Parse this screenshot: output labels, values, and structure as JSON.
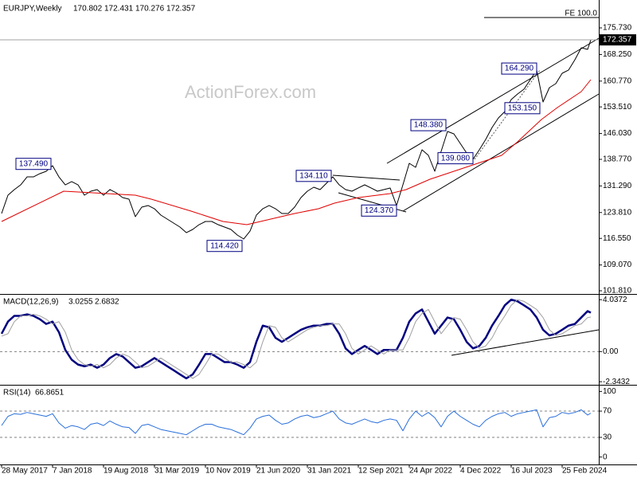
{
  "chart_data": [
    {
      "type": "line",
      "title": "EURJPY,Weekly",
      "last_bar": {
        "open": 170.802,
        "high": 172.431,
        "low": 170.276
      },
      "watermark": "ActionForex.com",
      "xlim": [
        -1,
        375
      ],
      "ylim": [
        101.14,
        183.12
      ],
      "yticks": [
        {
          "value": 175.73,
          "label": "175.730"
        },
        {
          "value": 168.25,
          "label": "168.250"
        },
        {
          "value": 160.77,
          "label": "160.770"
        },
        {
          "value": 153.51,
          "label": "153.510"
        },
        {
          "value": 146.03,
          "label": "146.030"
        },
        {
          "value": 138.77,
          "label": "138.770"
        },
        {
          "value": 131.29,
          "label": "131.290"
        },
        {
          "value": 123.81,
          "label": "123.810"
        },
        {
          "value": 116.55,
          "label": "116.550"
        },
        {
          "value": 109.07,
          "label": "109.070"
        },
        {
          "value": 101.81,
          "label": "101.810"
        }
      ],
      "series": [
        {
          "color": "#000000",
          "width": 1,
          "x": [
            0,
            4,
            8,
            12,
            16,
            20,
            24,
            28,
            32,
            36,
            40,
            44,
            48,
            52,
            56,
            60,
            64,
            68,
            72,
            76,
            80,
            84,
            88,
            92,
            96,
            100,
            104,
            108,
            112,
            116,
            120,
            124,
            128,
            132,
            136,
            140,
            144,
            148,
            152,
            156,
            160,
            164,
            168,
            172,
            176,
            180,
            184,
            188,
            192,
            196,
            200,
            204,
            208,
            212,
            216,
            220,
            224,
            228,
            232,
            236,
            240,
            244,
            248,
            252,
            256,
            260,
            264,
            268,
            272,
            276,
            280,
            284,
            288,
            292,
            296,
            300,
            304,
            308,
            312,
            316,
            320,
            324,
            328,
            332,
            336,
            340,
            344,
            348,
            352,
            356,
            360,
            364,
            368,
            370
          ],
          "values": [
            123.54,
            128.69,
            130.26,
            131.6,
            133.84,
            133.84,
            134.74,
            135.41,
            136.98,
            133.84,
            131.6,
            132.5,
            131.6,
            128.69,
            129.81,
            130.26,
            128.69,
            130.26,
            129.36,
            128.02,
            127.57,
            122.64,
            125.33,
            125.78,
            124.88,
            123.09,
            121.97,
            120.85,
            119.73,
            118.16,
            119.06,
            120.4,
            121.3,
            121.3,
            120.4,
            119.73,
            119.06,
            117.49,
            116.37,
            118.61,
            123.09,
            124.88,
            125.78,
            124.88,
            123.54,
            123.54,
            125.33,
            128.02,
            129.81,
            130.93,
            130.26,
            132.05,
            133.84,
            131.6,
            130.26,
            129.81,
            130.71,
            131.6,
            130.71,
            129.81,
            130.26,
            130.71,
            125.78,
            131.6,
            137.65,
            136.53,
            141.46,
            139.89,
            135.41,
            141.01,
            146.61,
            145.94,
            143.25,
            140.56,
            138.77,
            141.46,
            144.37,
            147.73,
            150.42,
            152.21,
            155.57,
            157.14,
            158.48,
            161.17,
            163.86,
            154.9,
            158.93,
            160.05,
            162.96,
            163.86,
            166.77,
            170.13,
            169.68,
            172.357
          ]
        },
        {
          "color": "#e00000",
          "width": 1,
          "x": [
            0,
            39,
            84,
            94,
            119,
            139,
            154,
            169,
            184,
            199,
            209,
            224,
            244,
            254,
            269,
            284,
            299,
            314,
            324,
            339,
            349,
            364,
            370
          ],
          "values": [
            121.3,
            129.81,
            128.69,
            127.57,
            124.21,
            121.3,
            120.4,
            121.97,
            123.54,
            124.88,
            126.45,
            128.02,
            129.14,
            130.26,
            133.17,
            135.41,
            137.65,
            139.89,
            143.7,
            149.97,
            153.33,
            157.81,
            161.17
          ]
        }
      ],
      "annotations": [
        {
          "x": 32,
          "value": 137.49,
          "label": "137.490"
        },
        {
          "x": 152,
          "value": 114.42,
          "label": "114.420"
        },
        {
          "x": 208,
          "value": 134.11,
          "label": "134.110"
        },
        {
          "x": 249,
          "value": 124.37,
          "label": "124.370"
        },
        {
          "x": 280,
          "value": 148.38,
          "label": "148.380"
        },
        {
          "x": 297,
          "value": 139.08,
          "label": "139.080"
        },
        {
          "x": 337,
          "value": 164.29,
          "label": "164.290"
        },
        {
          "x": 339,
          "value": 153.15,
          "label": "153.150"
        }
      ],
      "fe_level": {
        "label": "FE 100.0",
        "value": 178.64,
        "x": 303
      }
    },
    {
      "type": "line",
      "title": "MACD(12,26,9)",
      "xlim": [
        -1,
        375
      ],
      "ylim": [
        -2.52,
        4.42
      ],
      "yticks": [
        4.0372,
        {
          "value": 0,
          "label": "0.00"
        },
        -2.3432
      ],
      "levels": [
        0
      ],
      "series": [
        {
          "color": "#000080",
          "width": 2.5,
          "x": [
            0,
            4,
            8,
            12,
            16,
            20,
            24,
            28,
            32,
            36,
            40,
            44,
            48,
            52,
            56,
            60,
            64,
            68,
            72,
            76,
            80,
            84,
            88,
            92,
            96,
            100,
            104,
            108,
            112,
            116,
            120,
            124,
            128,
            132,
            136,
            140,
            144,
            148,
            152,
            156,
            160,
            164,
            168,
            172,
            176,
            180,
            184,
            188,
            192,
            196,
            200,
            204,
            208,
            212,
            216,
            220,
            224,
            228,
            232,
            236,
            240,
            244,
            248,
            252,
            256,
            260,
            264,
            268,
            272,
            276,
            280,
            284,
            288,
            292,
            296,
            300,
            304,
            308,
            312,
            316,
            320,
            324,
            328,
            332,
            336,
            340,
            344,
            348,
            352,
            356,
            360,
            364,
            368,
            370
          ],
          "values": [
            1.39,
            2.33,
            2.78,
            2.78,
            2.9,
            2.78,
            2.52,
            2.15,
            2.33,
            1.51,
            0.13,
            -0.63,
            -1.01,
            -1.14,
            -1.01,
            -1.26,
            -1.01,
            -0.5,
            -0.19,
            -0.38,
            -0.82,
            -1.26,
            -1.14,
            -0.82,
            -0.5,
            -0.82,
            -1.14,
            -1.45,
            -1.77,
            -2.08,
            -1.77,
            -1.01,
            -0.19,
            -0.19,
            -0.5,
            -0.82,
            -0.82,
            -1.01,
            -1.26,
            -0.82,
            0.76,
            2.02,
            1.89,
            1.07,
            0.76,
            1.07,
            1.39,
            1.7,
            1.89,
            2.02,
            2.02,
            2.15,
            2.15,
            1.39,
            0.25,
            -0.19,
            0.13,
            0.44,
            0.13,
            -0.19,
            0.13,
            0.13,
            0.13,
            1.07,
            2.33,
            2.97,
            3.28,
            2.33,
            1.39,
            2.02,
            2.65,
            2.52,
            1.7,
            0.76,
            0.25,
            0.44,
            1.07,
            2.02,
            2.78,
            3.6,
            4.04,
            3.91,
            3.6,
            3.28,
            2.65,
            1.7,
            1.26,
            1.39,
            1.7,
            2.02,
            2.15,
            2.65,
            3.15,
            3.0255
          ]
        },
        {
          "color": "#a0a0a0",
          "width": 1,
          "x": [
            0,
            4,
            8,
            12,
            16,
            20,
            24,
            28,
            32,
            36,
            40,
            44,
            48,
            52,
            56,
            60,
            64,
            68,
            72,
            76,
            80,
            84,
            88,
            92,
            96,
            100,
            104,
            108,
            112,
            116,
            120,
            124,
            128,
            132,
            136,
            140,
            144,
            148,
            152,
            156,
            160,
            164,
            168,
            172,
            176,
            180,
            184,
            188,
            192,
            196,
            200,
            204,
            208,
            212,
            216,
            220,
            224,
            228,
            232,
            236,
            240,
            244,
            248,
            252,
            256,
            260,
            264,
            268,
            272,
            276,
            280,
            284,
            288,
            292,
            296,
            300,
            304,
            308,
            312,
            316,
            320,
            324,
            328,
            332,
            336,
            340,
            344,
            348,
            352,
            356,
            360,
            364,
            368,
            370
          ],
          "values": [
            1.2,
            1.39,
            2.33,
            2.78,
            2.78,
            2.9,
            2.78,
            2.52,
            2.15,
            2.33,
            1.51,
            0.13,
            -0.63,
            -1.01,
            -1.14,
            -1.01,
            -1.26,
            -1.01,
            -0.5,
            -0.19,
            -0.38,
            -0.82,
            -1.26,
            -1.14,
            -0.82,
            -0.5,
            -0.82,
            -1.14,
            -1.45,
            -1.77,
            -2.08,
            -1.77,
            -1.01,
            -0.19,
            -0.19,
            -0.5,
            -0.82,
            -0.82,
            -1.01,
            -1.26,
            -0.82,
            0.76,
            2.02,
            1.89,
            1.07,
            0.76,
            1.07,
            1.39,
            1.7,
            1.89,
            2.02,
            2.02,
            2.15,
            2.15,
            1.39,
            0.25,
            -0.19,
            0.13,
            0.44,
            0.13,
            -0.19,
            0.13,
            0.13,
            0.13,
            1.07,
            2.33,
            2.97,
            3.28,
            2.33,
            1.39,
            2.02,
            2.65,
            2.52,
            1.7,
            0.76,
            0.25,
            0.44,
            1.07,
            2.02,
            2.78,
            3.6,
            4.04,
            3.91,
            3.6,
            3.28,
            2.65,
            1.7,
            1.26,
            1.39,
            1.7,
            2.02,
            2.15,
            2.65,
            2.6832
          ]
        }
      ]
    },
    {
      "type": "line",
      "title": "RSI(14)",
      "xlim": [
        -1,
        375
      ],
      "ylim": [
        -10.1,
        108.9
      ],
      "yticks": [
        100,
        70,
        30,
        0
      ],
      "levels": [
        70,
        30
      ],
      "xticks": [
        {
          "value": 0,
          "label": "28 May 2017"
        },
        {
          "value": 32,
          "label": "7 Jan 2018"
        },
        {
          "value": 64,
          "label": "19 Aug 2018"
        },
        {
          "value": 96,
          "label": "31 Mar 2019"
        },
        {
          "value": 128,
          "label": "10 Nov 2019"
        },
        {
          "value": 160,
          "label": "21 Jun 2020"
        },
        {
          "value": 192,
          "label": "31 Jan 2021"
        },
        {
          "value": 224,
          "label": "12 Sep 2021"
        },
        {
          "value": 256,
          "label": "24 Apr 2022"
        },
        {
          "value": 288,
          "label": "4 Dec 2022"
        },
        {
          "value": 320,
          "label": "16 Jul 2023"
        },
        {
          "value": 352,
          "label": "25 Feb 2024"
        }
      ],
      "series": [
        {
          "color": "#2a6fdb",
          "width": 1,
          "x": [
            0,
            4,
            8,
            12,
            16,
            20,
            24,
            28,
            32,
            36,
            40,
            44,
            48,
            52,
            56,
            60,
            64,
            68,
            72,
            76,
            80,
            84,
            88,
            92,
            96,
            100,
            104,
            108,
            112,
            116,
            120,
            124,
            128,
            132,
            136,
            140,
            144,
            148,
            152,
            156,
            160,
            164,
            168,
            172,
            176,
            180,
            184,
            188,
            192,
            196,
            200,
            204,
            208,
            212,
            216,
            220,
            224,
            228,
            232,
            236,
            240,
            244,
            248,
            252,
            256,
            260,
            264,
            268,
            272,
            276,
            280,
            284,
            288,
            292,
            296,
            300,
            304,
            308,
            312,
            316,
            320,
            324,
            328,
            332,
            336,
            340,
            344,
            348,
            352,
            356,
            360,
            364,
            368,
            370
          ],
          "values": [
            48,
            62,
            66,
            65,
            68,
            66,
            64,
            62,
            66,
            52,
            44,
            48,
            46,
            42,
            50,
            52,
            48,
            55,
            50,
            46,
            45,
            36,
            48,
            50,
            46,
            42,
            40,
            38,
            36,
            34,
            40,
            46,
            50,
            50,
            46,
            44,
            42,
            38,
            34,
            44,
            58,
            62,
            64,
            56,
            50,
            52,
            58,
            62,
            64,
            60,
            62,
            66,
            70,
            58,
            52,
            50,
            54,
            58,
            54,
            52,
            56,
            58,
            56,
            40,
            58,
            70,
            62,
            68,
            60,
            46,
            62,
            70,
            62,
            56,
            50,
            46,
            56,
            62,
            66,
            68,
            62,
            66,
            68,
            70,
            72,
            46,
            60,
            62,
            68,
            66,
            68,
            72,
            64,
            66.8651
          ]
        }
      ]
    }
  ]
}
